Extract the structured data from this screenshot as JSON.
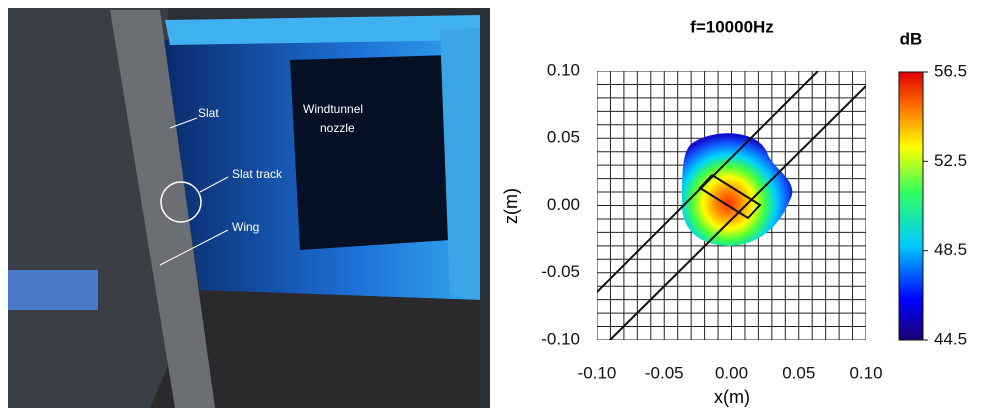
{
  "photo": {
    "labels": [
      "Slat",
      "Windtunnel",
      "nozzle",
      "Slat track",
      "Wing"
    ]
  },
  "chart_data": {
    "type": "contour",
    "title": "f=10000Hz",
    "x_label": "x(m)",
    "y_label": "z(m)",
    "xlim": [
      -0.1,
      0.1
    ],
    "ylim": [
      -0.1,
      0.1
    ],
    "xticks": [
      {
        "value": -0.1,
        "label": "-0.10"
      },
      -0.05,
      {
        "value": 0,
        "label": "0.00"
      },
      0.05,
      {
        "value": 0.1,
        "label": "0.10"
      }
    ],
    "yticks": [
      {
        "value": -0.1,
        "label": "-0.10"
      },
      -0.05,
      {
        "value": 0,
        "label": "0.00"
      },
      0.05,
      {
        "value": 0.1,
        "label": "0.10"
      }
    ],
    "grid": true,
    "colorbar_label": "dB",
    "clim": [
      44.5,
      56.5
    ],
    "cticks": [
      44.5,
      48.5,
      52.5,
      56.5
    ]
  }
}
